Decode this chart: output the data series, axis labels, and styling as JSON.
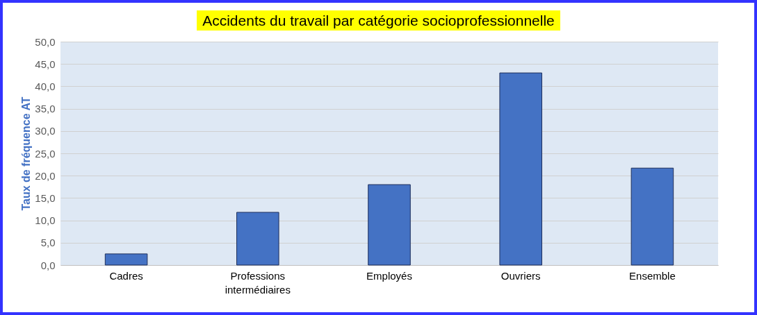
{
  "chart_data": {
    "type": "bar",
    "title": "Accidents du travail  par catégorie socioprofessionnelle",
    "ylabel": "Taux de fréquence AT",
    "categories": [
      "Cadres",
      "Professions intermédiaires",
      "Employés",
      "Ouvriers",
      "Ensemble"
    ],
    "values": [
      2.5,
      11.8,
      18.0,
      43.0,
      21.7
    ],
    "color": "#4472c4",
    "ylim": [
      0,
      50
    ],
    "yticks": [
      {
        "value": 0,
        "label": "0,0"
      },
      {
        "value": 5,
        "label": "5,0"
      },
      {
        "value": 10,
        "label": "10,0"
      },
      {
        "value": 15,
        "label": "15,0"
      },
      {
        "value": 20,
        "label": "20,0"
      },
      {
        "value": 25,
        "label": "25,0"
      },
      {
        "value": 30,
        "label": "30,0"
      },
      {
        "value": 35,
        "label": "35,0"
      },
      {
        "value": 40,
        "label": "40,0"
      },
      {
        "value": 45,
        "label": "45,0"
      },
      {
        "value": 50,
        "label": "50,0"
      }
    ],
    "grid": true
  }
}
